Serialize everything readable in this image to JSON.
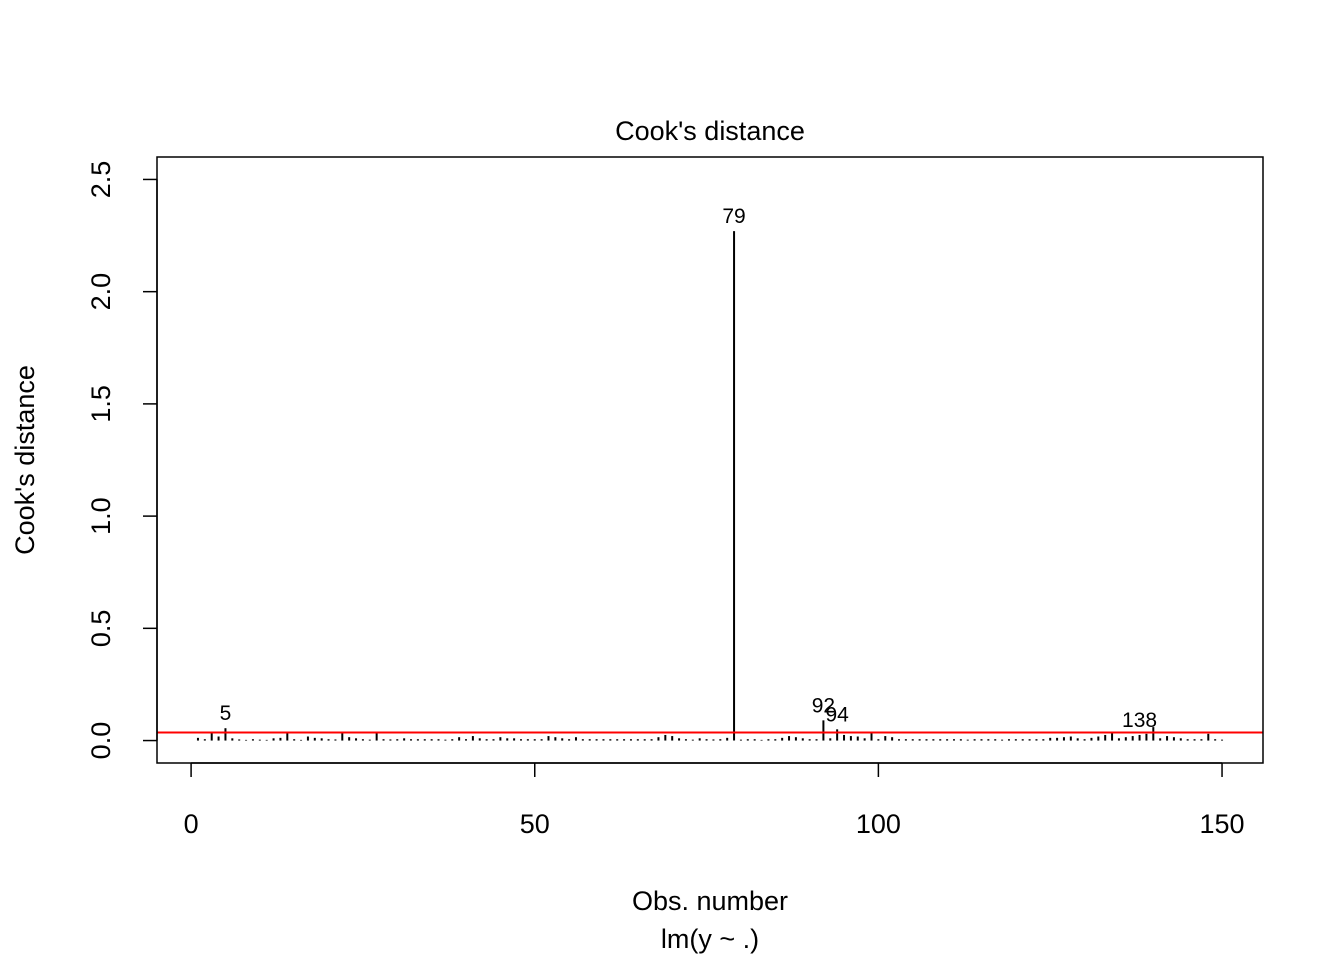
{
  "chart_data": {
    "type": "bar",
    "title": "Cook's distance",
    "xlabel": "Obs. number",
    "ylabel": "Cook's distance",
    "subtitle": "lm(y ~ .)",
    "xlim": [
      -4.96,
      155.96
    ],
    "ylim": [
      -0.1,
      2.6
    ],
    "xticks": [
      0,
      50,
      100,
      150
    ],
    "yticks": [
      0.0,
      0.5,
      1.0,
      1.5,
      2.0,
      2.5
    ],
    "ytick_labels": [
      "0.0",
      "0.5",
      "1.0",
      "1.5",
      "2.0",
      "2.5"
    ],
    "reference_line": {
      "y": 0.0357,
      "color": "#ff0000"
    },
    "bar_color": "#000000",
    "x": [
      1,
      2,
      3,
      4,
      5,
      6,
      7,
      8,
      9,
      10,
      11,
      12,
      13,
      14,
      15,
      16,
      17,
      18,
      19,
      20,
      21,
      22,
      23,
      24,
      25,
      26,
      27,
      28,
      29,
      30,
      31,
      32,
      33,
      34,
      35,
      36,
      37,
      38,
      39,
      40,
      41,
      42,
      43,
      44,
      45,
      46,
      47,
      48,
      49,
      50,
      51,
      52,
      53,
      54,
      55,
      56,
      57,
      58,
      59,
      60,
      61,
      62,
      63,
      64,
      65,
      66,
      67,
      68,
      69,
      70,
      71,
      72,
      73,
      74,
      75,
      76,
      77,
      78,
      79,
      80,
      81,
      82,
      83,
      84,
      85,
      86,
      87,
      88,
      89,
      90,
      91,
      92,
      93,
      94,
      95,
      96,
      97,
      98,
      99,
      100,
      101,
      102,
      103,
      104,
      105,
      106,
      107,
      108,
      109,
      110,
      111,
      112,
      113,
      114,
      115,
      116,
      117,
      118,
      119,
      120,
      121,
      122,
      123,
      124,
      125,
      126,
      127,
      128,
      129,
      130,
      131,
      132,
      133,
      134,
      135,
      136,
      137,
      138,
      139,
      140,
      141,
      142,
      143,
      144,
      145,
      146,
      147,
      148,
      149,
      150
    ],
    "values": [
      0.012,
      0.006,
      0.035,
      0.018,
      0.055,
      0.01,
      0.005,
      0.003,
      0.006,
      0.004,
      0.003,
      0.01,
      0.012,
      0.04,
      0.006,
      0.003,
      0.018,
      0.012,
      0.01,
      0.006,
      0.005,
      0.035,
      0.015,
      0.01,
      0.006,
      0.004,
      0.035,
      0.006,
      0.005,
      0.006,
      0.01,
      0.006,
      0.006,
      0.006,
      0.006,
      0.006,
      0.004,
      0.006,
      0.015,
      0.006,
      0.02,
      0.01,
      0.006,
      0.006,
      0.015,
      0.01,
      0.01,
      0.006,
      0.006,
      0.006,
      0.006,
      0.02,
      0.015,
      0.01,
      0.006,
      0.015,
      0.006,
      0.006,
      0.006,
      0.006,
      0.006,
      0.006,
      0.006,
      0.006,
      0.006,
      0.006,
      0.006,
      0.015,
      0.025,
      0.02,
      0.01,
      0.006,
      0.004,
      0.01,
      0.006,
      0.005,
      0.006,
      0.012,
      2.27,
      0.004,
      0.006,
      0.006,
      0.003,
      0.006,
      0.006,
      0.012,
      0.02,
      0.015,
      0.01,
      0.006,
      0.006,
      0.09,
      0.01,
      0.05,
      0.025,
      0.02,
      0.018,
      0.01,
      0.04,
      0.006,
      0.02,
      0.015,
      0.006,
      0.006,
      0.006,
      0.006,
      0.006,
      0.006,
      0.006,
      0.006,
      0.006,
      0.006,
      0.004,
      0.006,
      0.006,
      0.006,
      0.006,
      0.004,
      0.006,
      0.006,
      0.006,
      0.006,
      0.006,
      0.006,
      0.012,
      0.012,
      0.015,
      0.018,
      0.01,
      0.006,
      0.012,
      0.018,
      0.025,
      0.04,
      0.01,
      0.015,
      0.02,
      0.025,
      0.03,
      0.06,
      0.01,
      0.02,
      0.015,
      0.01,
      0.006,
      0.006,
      0.006,
      0.03,
      0.006,
      0.004
    ],
    "point_labels": [
      {
        "x": 5,
        "label": "5"
      },
      {
        "x": 79,
        "label": "79"
      },
      {
        "x": 92,
        "label": "92"
      },
      {
        "x": 94,
        "label": "94"
      },
      {
        "x": 138,
        "label": "138"
      }
    ]
  }
}
